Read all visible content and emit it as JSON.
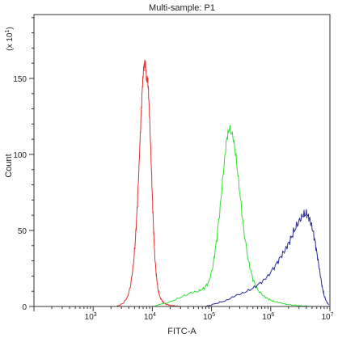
{
  "chart_data": {
    "type": "line",
    "title": "Multi-sample: P1",
    "xlabel": "FITC-A",
    "ylabel": "Count",
    "y_multiplier_label": "(x 10",
    "y_multiplier_exp": "1",
    "x_scale": "log",
    "xlim": [
      100,
      10000000
    ],
    "ylim": [
      0,
      192
    ],
    "x_ticks": [
      {
        "value": 1000,
        "base": "10",
        "exp": "3"
      },
      {
        "value": 10000,
        "base": "10",
        "exp": "4"
      },
      {
        "value": 100000,
        "base": "10",
        "exp": "5"
      },
      {
        "value": 1000000,
        "base": "10",
        "exp": "6"
      },
      {
        "value": 10000000,
        "base": "10",
        "exp": "7"
      }
    ],
    "y_ticks": [
      {
        "value": 0,
        "label": "0"
      },
      {
        "value": 50,
        "label": "50"
      },
      {
        "value": 100,
        "label": "100"
      },
      {
        "value": 150,
        "label": "150"
      }
    ],
    "grid": false,
    "legend": "none",
    "series": [
      {
        "color": "#e03030",
        "x": [
          2500,
          3200,
          3800,
          4300,
          4800,
          5200,
          5600,
          6000,
          6400,
          6800,
          7100,
          7400,
          7700,
          8000,
          8300,
          8600,
          9000,
          9500,
          10000,
          10500,
          11000,
          11700,
          12500,
          13500,
          15000,
          17000,
          20000,
          25000,
          30000
        ],
        "y": [
          0,
          2,
          6,
          14,
          28,
          45,
          68,
          95,
          122,
          145,
          156,
          160,
          158,
          148,
          150,
          142,
          124,
          98,
          72,
          50,
          33,
          20,
          11,
          6,
          3,
          1.5,
          0.8,
          0.3,
          0
        ]
      },
      {
        "color": "#33dd33",
        "x": [
          10000,
          20000,
          30000,
          45000,
          60000,
          75000,
          90000,
          105000,
          120000,
          140000,
          160000,
          180000,
          200000,
          230000,
          260000,
          300000,
          350000,
          420000,
          500000,
          600000,
          750000,
          900000,
          1100000,
          1400000,
          1800000,
          2500000,
          3500000,
          5000000
        ],
        "y": [
          0,
          3,
          6,
          9,
          10,
          12,
          16,
          26,
          42,
          65,
          90,
          110,
          117,
          112,
          98,
          75,
          50,
          30,
          18,
          11,
          7,
          5,
          3.5,
          2.5,
          1.5,
          0.8,
          0.3,
          0
        ]
      },
      {
        "color": "#2a2a9a",
        "x": [
          80000,
          120000,
          180000,
          250000,
          350000,
          500000,
          700000,
          900000,
          1200000,
          1500000,
          1800000,
          2100000,
          2500000,
          3000000,
          3500000,
          4000000,
          4500000,
          5000000,
          5600000,
          6200000,
          6800000,
          7400000,
          8000000,
          8800000,
          9600000
        ],
        "y": [
          0,
          2,
          4,
          7,
          9,
          12,
          16,
          20,
          27,
          33,
          38,
          43,
          50,
          56,
          60,
          61,
          58,
          52,
          43,
          32,
          22,
          13,
          7,
          3,
          1
        ]
      }
    ]
  }
}
